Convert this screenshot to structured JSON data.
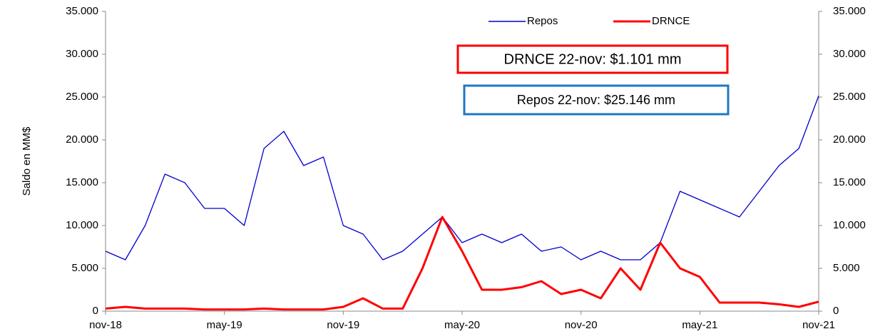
{
  "chart_data": {
    "type": "line",
    "y_axis_label": "Saldo en MM$",
    "categories": [
      "nov-18",
      null,
      null,
      null,
      null,
      null,
      "may-19",
      null,
      null,
      null,
      null,
      null,
      "nov-19",
      null,
      null,
      null,
      null,
      null,
      "may-20",
      null,
      null,
      null,
      null,
      null,
      "nov-20",
      null,
      null,
      null,
      null,
      null,
      "may-21",
      null,
      null,
      null,
      null,
      null,
      "nov-21"
    ],
    "series": [
      {
        "name": "Repos",
        "color": "#0000cc",
        "values": [
          7000,
          6000,
          10000,
          16000,
          15000,
          12000,
          12000,
          10000,
          19000,
          21000,
          17000,
          18000,
          10000,
          9000,
          6000,
          7000,
          9000,
          11000,
          8000,
          9000,
          8000,
          9000,
          7000,
          7500,
          6000,
          7000,
          6000,
          6000,
          8000,
          14000,
          13000,
          12000,
          11000,
          14000,
          17000,
          19000,
          25146
        ]
      },
      {
        "name": "DRNCE",
        "color": "#ff0000",
        "values": [
          300,
          500,
          300,
          300,
          300,
          200,
          200,
          200,
          300,
          200,
          200,
          200,
          500,
          1500,
          300,
          300,
          5000,
          11000,
          7000,
          2500,
          2500,
          2800,
          3500,
          2000,
          2500,
          1500,
          5000,
          2500,
          8000,
          5000,
          4000,
          1000,
          1000,
          1000,
          800,
          500,
          1101
        ]
      }
    ],
    "annotations": [
      {
        "text": "DRNCE 22-nov: $1.101 mm",
        "color": "#ff0000"
      },
      {
        "text": "Repos 22-nov: $25.146 mm",
        "color": "#1f77c4"
      }
    ],
    "ylim": [
      0,
      35000
    ],
    "yticks": [
      {
        "value": 0,
        "label": "0"
      },
      {
        "value": 5000,
        "label": "5.000"
      },
      {
        "value": 10000,
        "label": "10.000"
      },
      {
        "value": 15000,
        "label": "15.000"
      },
      {
        "value": 20000,
        "label": "20.000"
      },
      {
        "value": 25000,
        "label": "25.000"
      },
      {
        "value": 30000,
        "label": "30.000"
      },
      {
        "value": 35000,
        "label": "35.000"
      }
    ],
    "y2lim": [
      0,
      35000
    ],
    "y2ticks": [
      {
        "value": 0,
        "label": "0"
      },
      {
        "value": 5000,
        "label": "5.000"
      },
      {
        "value": 10000,
        "label": "10.000"
      },
      {
        "value": 15000,
        "label": "15.000"
      },
      {
        "value": 20000,
        "label": "20.000"
      },
      {
        "value": 25000,
        "label": "25.000"
      },
      {
        "value": 30000,
        "label": "30.000"
      },
      {
        "value": 35000,
        "label": "35.000"
      }
    ]
  }
}
